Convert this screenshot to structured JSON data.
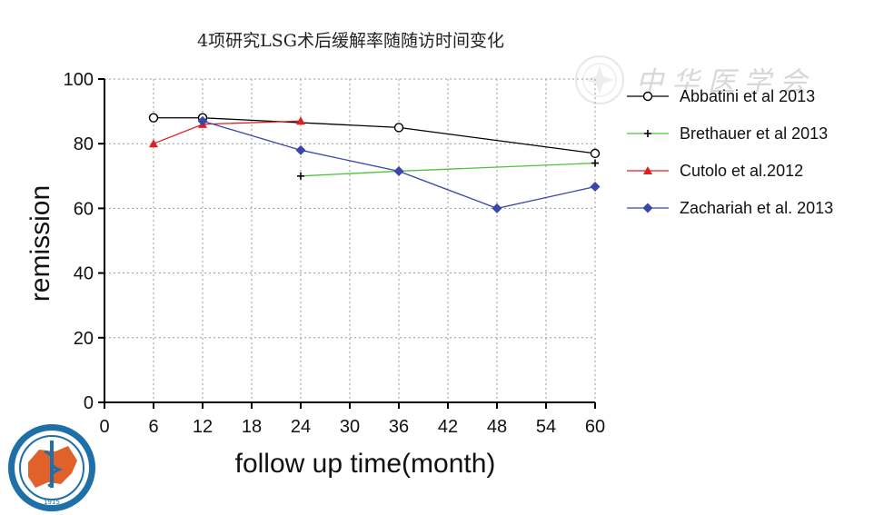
{
  "chart_data": {
    "type": "line",
    "title": "4项研究LSG术后缓解率随随访时间变化",
    "xlabel": "follow up time(month)",
    "ylabel": "remission",
    "xlim": [
      0,
      60
    ],
    "ylim": [
      0,
      100
    ],
    "xticks": [
      0,
      6,
      12,
      18,
      24,
      30,
      36,
      42,
      48,
      54,
      60
    ],
    "yticks": [
      0,
      20,
      40,
      60,
      80,
      100
    ],
    "grid": true,
    "legend_position": "right",
    "series": [
      {
        "name": "Abbatini et al 2013",
        "color": "#000000",
        "marker": "open-circle",
        "x": [
          6,
          12,
          36,
          60
        ],
        "y": [
          88,
          88,
          85,
          77
        ]
      },
      {
        "name": "Brethauer et al 2013",
        "color": "#4ec23a",
        "marker": "plus",
        "x": [
          24,
          36,
          60
        ],
        "y": [
          70,
          71.5,
          74
        ]
      },
      {
        "name": "Cutolo et al.2012",
        "color": "#e02020",
        "marker": "triangle",
        "x": [
          6,
          12,
          24
        ],
        "y": [
          80,
          86,
          87
        ]
      },
      {
        "name": "Zachariah et al. 2013",
        "color": "#3b47a8",
        "marker": "diamond",
        "x": [
          12,
          24,
          36,
          48,
          60
        ],
        "y": [
          87,
          78,
          71.5,
          60,
          66.7
        ]
      }
    ]
  },
  "watermark": {
    "text": "中 华 医 学 会",
    "icon": "chinese-medical-association-seal"
  },
  "logo": {
    "text": "CHINESE MEDICAL ASSOCIATION",
    "year": "1915",
    "icon": "chinese-medical-association-logo"
  }
}
